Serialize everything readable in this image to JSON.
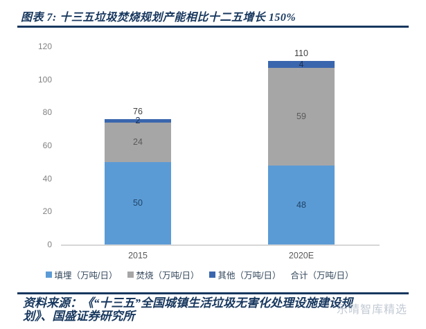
{
  "header": {
    "title": "图表 7: 十三五垃圾焚烧规划产能相比十二五增长 150%"
  },
  "chart_data": {
    "type": "bar",
    "stacked": true,
    "title": "图表 7: 十三五垃圾焚烧规划产能相比十二五增长 150%",
    "categories": [
      "2015",
      "2020E"
    ],
    "series": [
      {
        "name": "填埋（万吨/日）",
        "values": [
          50,
          48
        ],
        "color": "#5B9BD5",
        "label_color": "#1E4468"
      },
      {
        "name": "焚烧（万吨/日）",
        "values": [
          24,
          59
        ],
        "color": "#A6A6A6",
        "label_color": "#595959"
      },
      {
        "name": "其他（万吨/日）",
        "values": [
          2,
          4
        ],
        "color": "#3A66AE",
        "label_color": "#1E3050"
      }
    ],
    "totals": {
      "name": "合计（万吨/日）",
      "values": [
        76,
        110
      ],
      "label_color": "#404040"
    },
    "xlabel": "",
    "ylabel": "",
    "ylim": [
      0,
      120
    ],
    "yticks": [
      0,
      20,
      40,
      60,
      80,
      100,
      120
    ],
    "grid": false,
    "legend_position": "bottom",
    "colors": {
      "axis_line": "#D6D6D6",
      "tick_label": "#808080",
      "category_label": "#595959",
      "legend_text": "#33475B",
      "accent_navy": "#17375E"
    }
  },
  "footer": {
    "source": "资料来源：《“十三五”全国城镇生活垃圾无害化处理设施建设规划》、国盛证券研究所",
    "watermark": "乐晴智库精选"
  }
}
